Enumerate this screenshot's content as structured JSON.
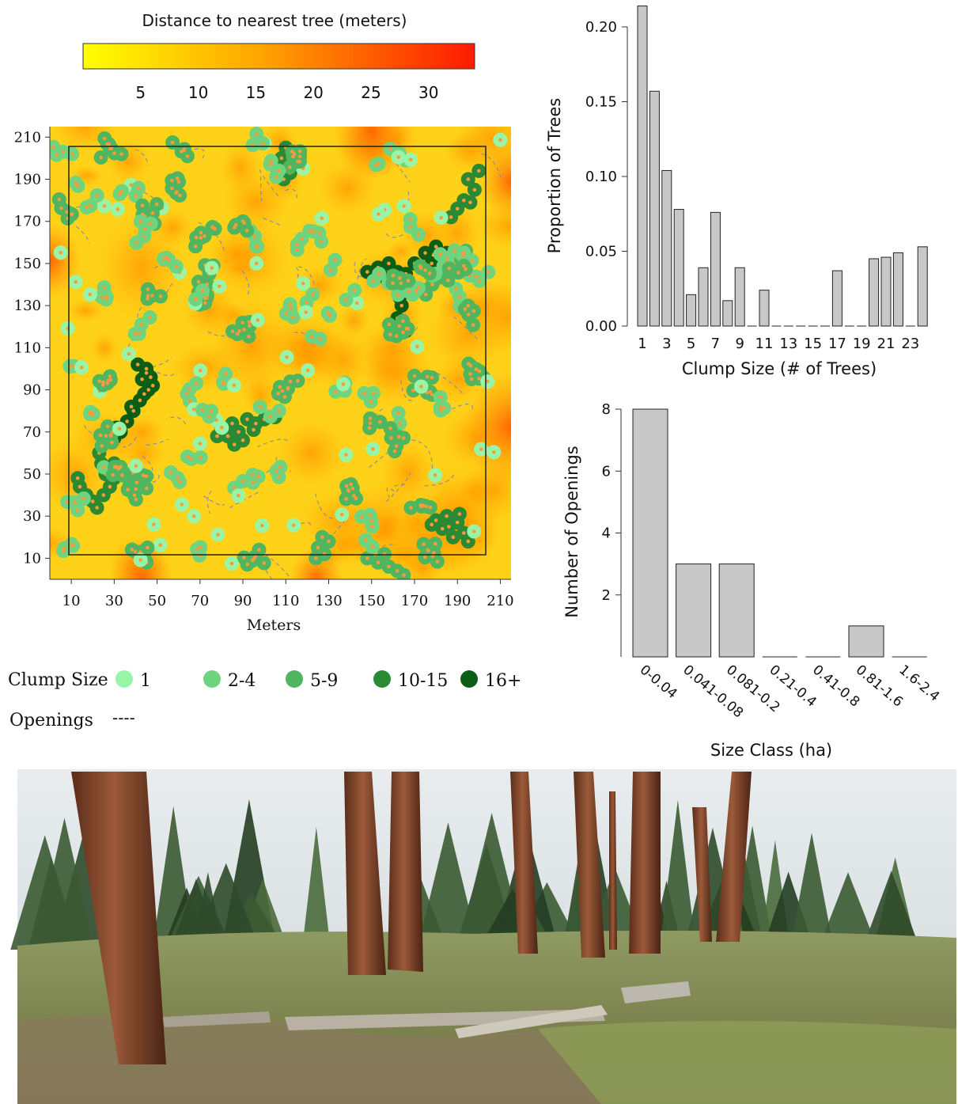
{
  "map": {
    "colorbar_title": "Distance to nearest tree (meters)",
    "colorbar_ticks": [
      5,
      10,
      15,
      20,
      25,
      30
    ],
    "colorbar_range": [
      0,
      34
    ],
    "x_ticks": [
      10,
      30,
      50,
      70,
      90,
      110,
      130,
      150,
      170,
      190,
      210
    ],
    "y_ticks": [
      10,
      30,
      50,
      70,
      90,
      110,
      130,
      150,
      170,
      190,
      210
    ],
    "xlabel": "Meters",
    "extent": [
      0,
      215
    ],
    "plot_boundary": [
      9,
      205,
      11,
      202
    ],
    "colors": {
      "near": "#ffff00",
      "mid": "#ffa500",
      "far": "#ff1a00",
      "clump_1": "#98f5a8",
      "clump_2_4": "#6ed47f",
      "clump_5_9": "#4fb65f",
      "clump_10_15": "#2a8a34",
      "clump_16_plus": "#0a5e16",
      "tree_center": "#ff9a3c"
    },
    "legend": {
      "clump_title": "Clump Size",
      "clump_classes": [
        "1",
        "2-4",
        "5-9",
        "10-15",
        "16+"
      ],
      "openings_label": "Openings",
      "openings_symbol": "----"
    }
  },
  "chart_data": [
    {
      "type": "bar",
      "categories": [
        "1",
        "2",
        "3",
        "4",
        "5",
        "6",
        "7",
        "8",
        "9",
        "10",
        "11",
        "12",
        "13",
        "14",
        "15",
        "16",
        "17",
        "18",
        "19",
        "20",
        "21",
        "22",
        "23",
        "24"
      ],
      "x_tick_labels": [
        "1",
        "3",
        "5",
        "7",
        "9",
        "11",
        "13",
        "15",
        "17",
        "19",
        "21",
        "23"
      ],
      "values": [
        0.214,
        0.157,
        0.104,
        0.078,
        0.021,
        0.039,
        0.076,
        0.017,
        0.039,
        0,
        0.024,
        0,
        0,
        0,
        0,
        0,
        0.037,
        0,
        0,
        0.045,
        0.046,
        0.049,
        0,
        0.053
      ],
      "title": "",
      "xlabel": "Clump Size (# of Trees)",
      "ylabel": "Proportion of Trees",
      "y_ticks": [
        "0.00",
        "0.05",
        "0.10",
        "0.15",
        "0.20"
      ],
      "ylim": [
        0,
        0.22
      ],
      "bar_color": "#c8c8c8"
    },
    {
      "type": "bar",
      "categories": [
        "0-0.04",
        "0.041-0.08",
        "0.081-0.2",
        "0.21-0.4",
        "0.41-0.8",
        "0.81-1.6",
        "1.6-2.4"
      ],
      "values": [
        8,
        3,
        3,
        0,
        0,
        1,
        0
      ],
      "title": "",
      "xlabel": "Size Class (ha)",
      "ylabel": "Number of Openings",
      "y_ticks": [
        "2",
        "4",
        "6",
        "8"
      ],
      "ylim": [
        0,
        8.3
      ],
      "bar_color": "#c8c8c8"
    }
  ],
  "photo": {
    "subject": "ponderosa-pine-forest-photo"
  }
}
